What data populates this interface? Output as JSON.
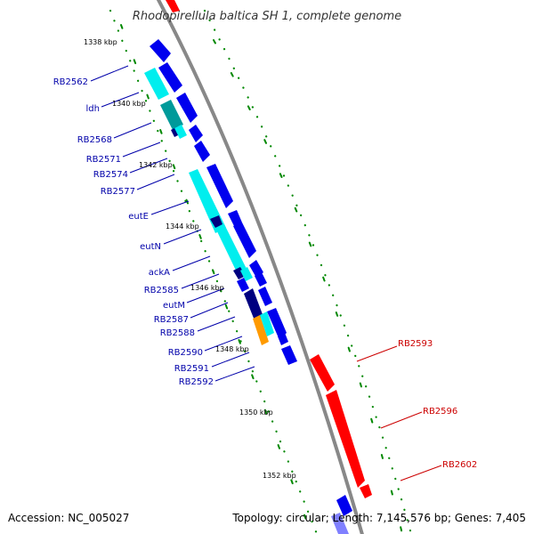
{
  "title": "Rhodopirellula baltica SH 1, complete genome",
  "footer": {
    "accession": "Accession: NC_005027",
    "summary": "Topology: circular; Length: 7,145,576 bp; Genes: 7,405"
  },
  "colors": {
    "backbone": "#888888",
    "forward_gene": "#ff0000",
    "reverse_gene": "#0000ee",
    "reverse_gene_dark": "#000080",
    "reverse_gene_light": "#00eeee",
    "reverse_gene_teal": "#009a9a",
    "orange_gene": "#ff9a00",
    "left_label": "#0000aa",
    "right_label": "#cc0000",
    "dotted_track": "#008800"
  },
  "kbp_ticks": [
    "1338 kbp",
    "1340 kbp",
    "1342 kbp",
    "1344 kbp",
    "1346 kbp",
    "1348 kbp",
    "1350 kbp",
    "1352 kbp"
  ],
  "left_gene_labels": [
    "RB2562",
    "ldh",
    "RB2568",
    "RB2571",
    "RB2574",
    "RB2577",
    "eutE",
    "eutN",
    "ackA",
    "RB2585",
    "eutM",
    "RB2587",
    "RB2588",
    "RB2590",
    "RB2591",
    "RB2592"
  ],
  "right_gene_labels": [
    "RB2593",
    "RB2596",
    "RB2602"
  ]
}
